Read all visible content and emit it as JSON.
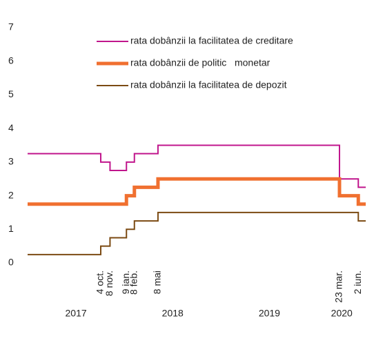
{
  "chart_data": {
    "type": "line",
    "step": true,
    "x": [
      "2017-01-01",
      "2017-10-04",
      "2017-11-08",
      "2018-01-09",
      "2018-02-08",
      "2018-05-08",
      "2020-03-23",
      "2020-06-02",
      "2020-06-30"
    ],
    "series": [
      {
        "name": "rata dobânzii la facilitatea de creditare",
        "color": "#c0158c",
        "width": 2,
        "values": [
          3.25,
          3.0,
          2.75,
          3.0,
          3.25,
          3.5,
          2.5,
          2.25,
          2.25
        ]
      },
      {
        "name": "rata dobânzii de politic   monetar",
        "color": "#f07030",
        "width": 5,
        "values": [
          1.75,
          1.75,
          1.75,
          2.0,
          2.25,
          2.5,
          2.0,
          1.75,
          1.75
        ]
      },
      {
        "name": "rata dobânzii la facilitatea de depozit",
        "color": "#7b4a12",
        "width": 2,
        "values": [
          0.25,
          0.5,
          0.75,
          1.0,
          1.25,
          1.5,
          1.5,
          1.25,
          1.25
        ]
      }
    ],
    "xlim": [
      "2017-01-01",
      "2020-06-30"
    ],
    "xticks": [
      {
        "value": "2017-10-04",
        "label": "4 oct."
      },
      {
        "value": "2017-11-08",
        "label": "8 nov."
      },
      {
        "value": "2018-01-09",
        "label": "9 ian."
      },
      {
        "value": "2018-02-08",
        "label": "8 feb."
      },
      {
        "value": "2018-05-08",
        "label": "8 mai"
      },
      {
        "value": "2020-03-23",
        "label": "23 mar."
      },
      {
        "value": "2020-06-02",
        "label": "2 iun."
      }
    ],
    "year_labels": [
      "2017",
      "2018",
      "2019",
      "2020"
    ],
    "ylim": [
      0,
      7
    ],
    "yticks": [
      0,
      1,
      2,
      3,
      4,
      5,
      6,
      7
    ],
    "grid": false,
    "legend": "top-right"
  }
}
